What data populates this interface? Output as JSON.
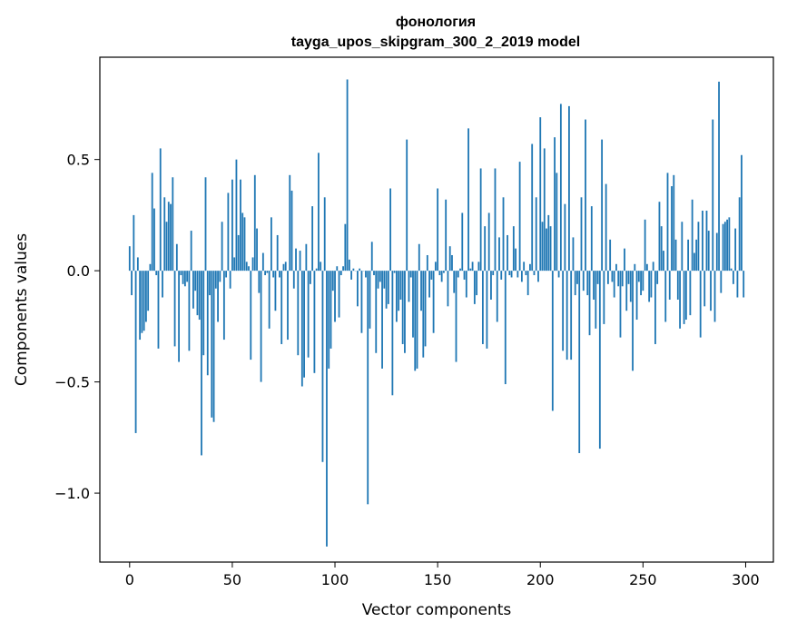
{
  "chart_data": {
    "type": "bar",
    "title": "фонология",
    "subtitle": "tayga_upos_skipgram_300_2_2019 model",
    "xlabel": "Vector components",
    "ylabel": "Components values",
    "xlim": [
      -14.5,
      313.5
    ],
    "ylim": [
      -1.31,
      0.96
    ],
    "x_ticks": [
      0,
      50,
      100,
      150,
      200,
      250,
      300
    ],
    "x_tick_labels": [
      "0",
      "50",
      "100",
      "150",
      "200",
      "250",
      "300"
    ],
    "y_ticks": [
      0.5,
      0.0,
      -0.5,
      -1.0
    ],
    "y_tick_labels": [
      "0.5",
      "0.0",
      "−0.5",
      "−1.0"
    ],
    "grid": false,
    "bar_color": "#1f77b4",
    "values": [
      0.11,
      -0.11,
      0.25,
      -0.73,
      0.06,
      -0.31,
      -0.28,
      -0.27,
      -0.23,
      -0.18,
      0.03,
      0.44,
      0.28,
      -0.02,
      -0.35,
      0.55,
      -0.12,
      0.33,
      0.22,
      0.31,
      0.3,
      0.42,
      -0.34,
      0.12,
      -0.41,
      -0.02,
      -0.06,
      -0.07,
      -0.05,
      -0.36,
      0.18,
      -0.17,
      -0.09,
      -0.2,
      -0.22,
      -0.83,
      -0.38,
      0.42,
      -0.47,
      -0.11,
      -0.66,
      -0.68,
      -0.08,
      -0.23,
      -0.05,
      0.22,
      -0.31,
      -0.03,
      0.35,
      -0.08,
      0.41,
      0.06,
      0.5,
      0.16,
      0.41,
      0.26,
      0.24,
      0.04,
      0.02,
      -0.4,
      0.06,
      0.43,
      0.19,
      -0.1,
      -0.5,
      0.08,
      -0.02,
      -0.01,
      -0.26,
      0.24,
      -0.03,
      -0.18,
      0.16,
      -0.03,
      -0.33,
      0.03,
      0.04,
      -0.31,
      0.43,
      0.36,
      -0.08,
      0.1,
      -0.38,
      0.09,
      -0.52,
      -0.48,
      0.12,
      -0.39,
      -0.06,
      0.29,
      -0.46,
      0.01,
      0.53,
      0.04,
      -0.86,
      0.33,
      -1.24,
      -0.44,
      -0.35,
      -0.09,
      -0.23,
      0.02,
      -0.21,
      -0.02,
      0.02,
      0.21,
      0.86,
      0.05,
      -0.04,
      0.01,
      0.0,
      -0.16,
      0.01,
      -0.28,
      0.0,
      -0.03,
      -1.05,
      -0.26,
      0.13,
      -0.02,
      -0.37,
      -0.08,
      -0.05,
      -0.44,
      -0.08,
      -0.17,
      -0.15,
      0.37,
      -0.56,
      -0.01,
      -0.23,
      -0.18,
      -0.13,
      -0.33,
      -0.37,
      0.59,
      -0.14,
      -0.03,
      -0.3,
      -0.45,
      -0.44,
      0.12,
      -0.18,
      -0.39,
      -0.34,
      0.07,
      -0.12,
      -0.04,
      -0.28,
      0.04,
      0.37,
      -0.02,
      -0.05,
      -0.01,
      0.32,
      -0.16,
      0.11,
      0.07,
      -0.1,
      -0.41,
      -0.03,
      0.01,
      0.26,
      -0.04,
      -0.12,
      0.64,
      0.01,
      0.04,
      -0.15,
      -0.11,
      0.04,
      0.46,
      -0.33,
      0.2,
      -0.35,
      0.26,
      -0.13,
      -0.02,
      0.46,
      -0.23,
      0.15,
      -0.04,
      0.33,
      -0.51,
      0.16,
      -0.02,
      -0.03,
      0.2,
      0.1,
      -0.03,
      0.49,
      -0.05,
      0.04,
      -0.02,
      -0.11,
      0.03,
      0.57,
      -0.02,
      0.33,
      -0.05,
      0.69,
      0.22,
      0.55,
      0.19,
      0.25,
      0.2,
      -0.63,
      0.6,
      0.44,
      -0.03,
      0.75,
      -0.36,
      0.3,
      -0.4,
      0.74,
      -0.4,
      0.15,
      -0.11,
      -0.06,
      -0.82,
      0.33,
      -0.09,
      0.68,
      -0.11,
      -0.29,
      0.29,
      -0.13,
      -0.26,
      -0.06,
      -0.8,
      0.59,
      -0.24,
      0.39,
      -0.06,
      0.14,
      -0.05,
      -0.12,
      0.03,
      -0.07,
      -0.3,
      -0.07,
      0.1,
      -0.18,
      -0.06,
      -0.14,
      -0.45,
      0.03,
      -0.22,
      -0.05,
      -0.11,
      -0.09,
      0.23,
      0.03,
      -0.14,
      -0.12,
      0.04,
      -0.33,
      -0.06,
      0.31,
      0.2,
      0.09,
      -0.23,
      0.44,
      -0.13,
      0.38,
      0.43,
      0.14,
      -0.13,
      -0.26,
      0.22,
      -0.24,
      -0.22,
      0.14,
      -0.2,
      0.32,
      0.08,
      0.14,
      0.22,
      -0.3,
      0.27,
      -0.16,
      0.27,
      0.18,
      -0.18,
      0.68,
      -0.23,
      0.17,
      0.85,
      -0.1,
      0.21,
      0.22,
      0.23,
      0.24,
      0.01,
      -0.06,
      0.19,
      -0.12,
      0.33,
      0.52,
      -0.12
    ]
  }
}
